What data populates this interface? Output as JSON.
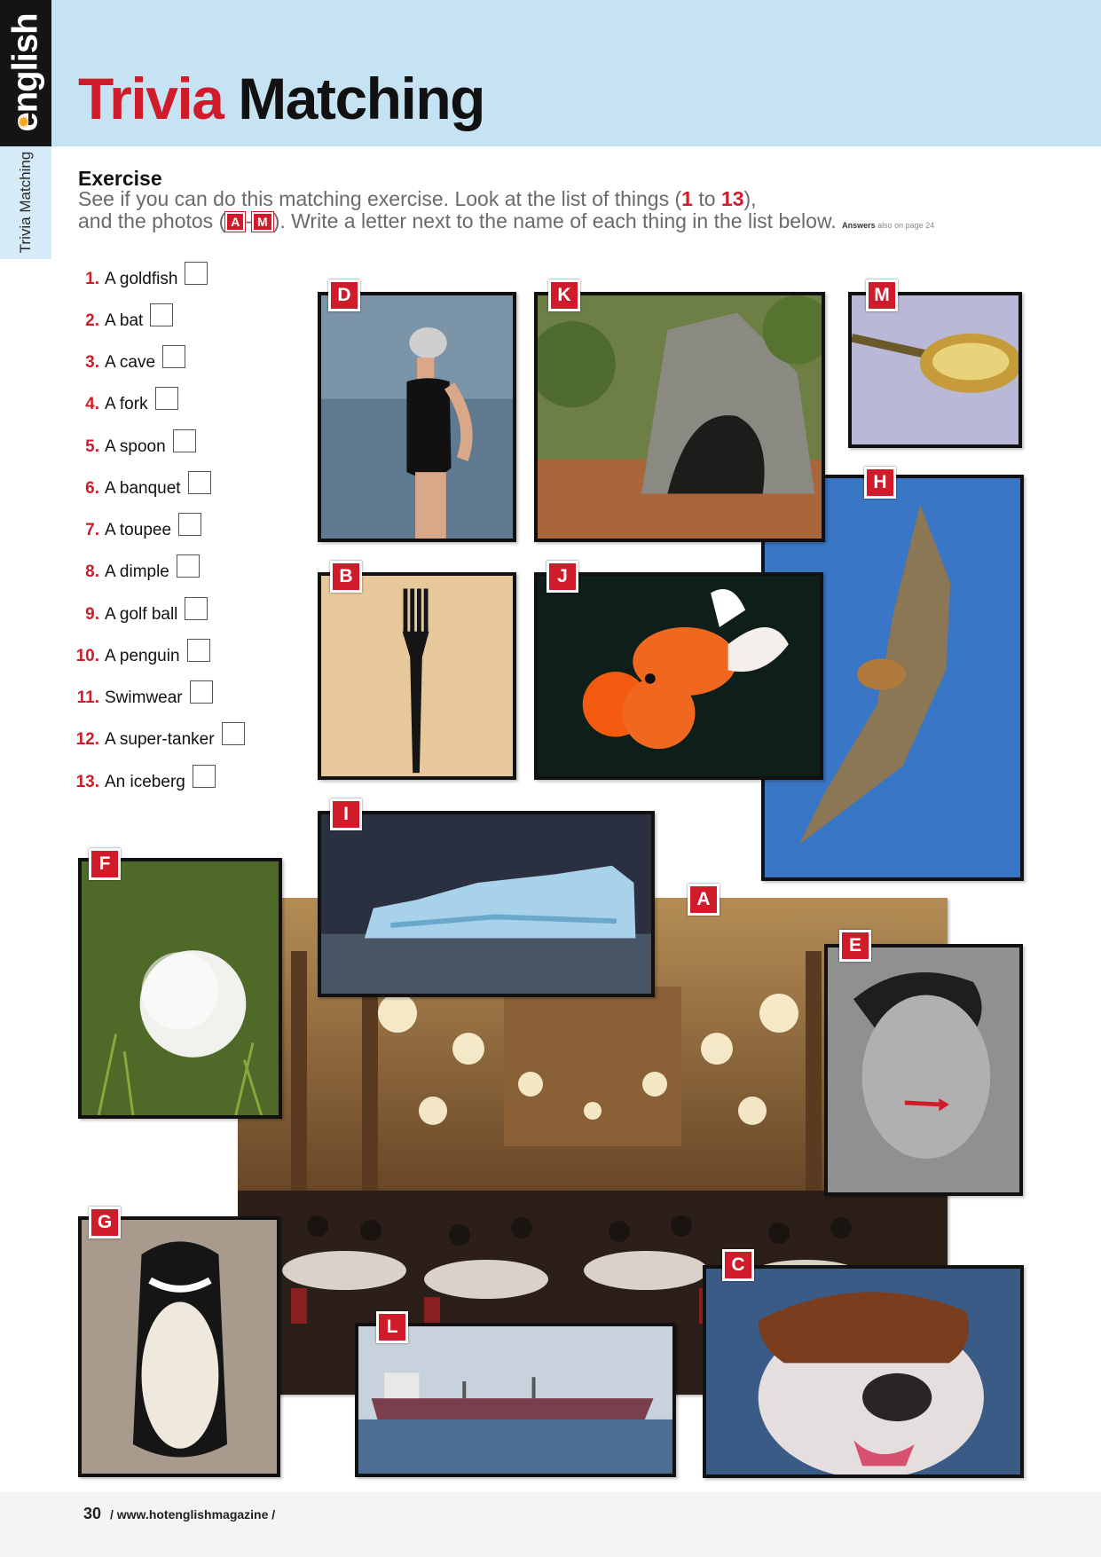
{
  "brand": {
    "logo_text": "english"
  },
  "side_label": "Trivia Matching",
  "title": {
    "word1": "Trivia",
    "word2": "Matching"
  },
  "exercise": {
    "heading": "Exercise",
    "line1_a": "See if you can do this matching exercise. Look at the list of things (",
    "range_start": "1",
    "range_mid": " to ",
    "range_end": "13",
    "line1_b": "),",
    "line2_a": "and the photos  (",
    "badge_from": "A",
    "badge_sep": "-",
    "badge_to": "M",
    "line2_b": "). Write a letter next to the name of each thing in the list below.",
    "answers_bold": "Answers",
    "answers_rest": " also on page 24"
  },
  "items": [
    {
      "num": "1.",
      "label": "A goldfish"
    },
    {
      "num": "2.",
      "label": "A bat"
    },
    {
      "num": "3.",
      "label": "A cave"
    },
    {
      "num": "4.",
      "label": "A fork"
    },
    {
      "num": "5.",
      "label": "A spoon"
    },
    {
      "num": "6.",
      "label": "A banquet"
    },
    {
      "num": "7.",
      "label": "A toupee"
    },
    {
      "num": "8.",
      "label": "A dimple"
    },
    {
      "num": "9.",
      "label": "A golf ball"
    },
    {
      "num": "10.",
      "label": "A penguin"
    },
    {
      "num": "11.",
      "label": "Swimwear"
    },
    {
      "num": "12.",
      "label": "A super-tanker"
    },
    {
      "num": "13.",
      "label": "An iceberg"
    }
  ],
  "photo_labels": {
    "A": "A",
    "B": "B",
    "C": "C",
    "D": "D",
    "E": "E",
    "F": "F",
    "G": "G",
    "H": "H",
    "I": "I",
    "J": "J",
    "K": "K",
    "L": "L",
    "M": "M"
  },
  "footer": {
    "page_number": "30",
    "url": "/ www.hotenglishmagazine /"
  },
  "colors": {
    "accent_red": "#d01c2a",
    "header_blue": "#c6e3f3",
    "text_gray": "#6a6a6a"
  }
}
